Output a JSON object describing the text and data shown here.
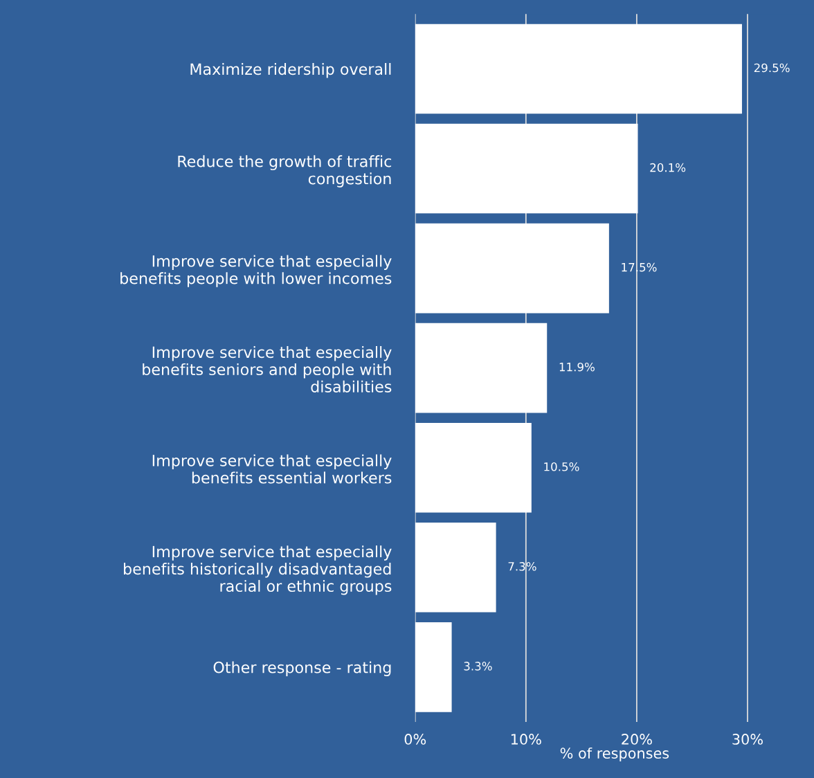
{
  "chart_data": {
    "type": "bar",
    "orientation": "horizontal",
    "xlabel": "% of responses",
    "categories": [
      "Maximize ridership overall",
      "Reduce the growth of traffic\ncongestion",
      "Improve service that especially\nbenefits people with lower incomes",
      "Improve service that especially\nbenefits seniors and people with\ndisabilities",
      "Improve service that especially\nbenefits essential workers",
      "Improve service that especially\nbenefits historically disadvantaged\nracial or ethnic groups",
      "Other response - rating"
    ],
    "values": [
      29.5,
      20.1,
      17.5,
      11.9,
      10.5,
      7.3,
      3.3
    ],
    "value_labels": [
      "29.5%",
      "20.1%",
      "17.5%",
      "11.9%",
      "10.5%",
      "7.3%",
      "3.3%"
    ],
    "color": "#ffffff",
    "xlim": [
      0,
      36
    ],
    "xticks": [
      {
        "value": 0,
        "label": "0%"
      },
      {
        "value": 10,
        "label": "10%"
      },
      {
        "value": 20,
        "label": "20%"
      },
      {
        "value": 30,
        "label": "30%"
      }
    ],
    "grid": "x",
    "legend": false
  }
}
